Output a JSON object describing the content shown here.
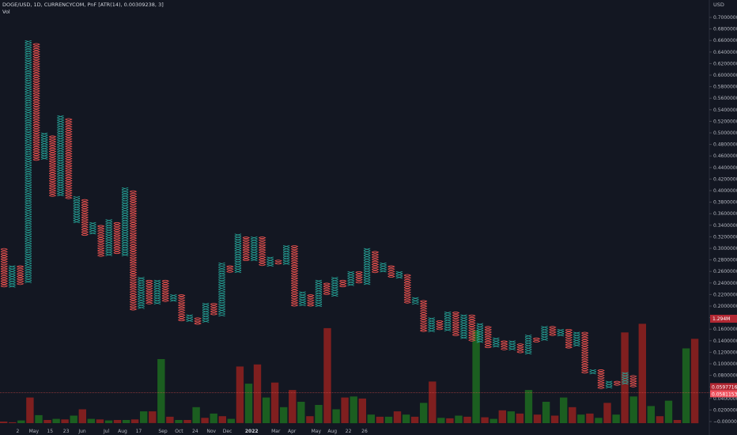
{
  "legend": {
    "symbol_line": "DOGE/USD, 1D, CURRENCYCOM, PnF [ATR(14), 0.00309238, 3]",
    "volume_line": "Vol"
  },
  "chart_data": {
    "type": "point-and-figure",
    "currency": "USD",
    "y_axis": {
      "unit": "USD",
      "ticks": [
        "0.7000000",
        "0.6800000",
        "0.6600000",
        "0.6400000",
        "0.6200000",
        "0.6000000",
        "0.5800000",
        "0.5600000",
        "0.5400000",
        "0.5200000",
        "0.5000000",
        "0.4800000",
        "0.4600000",
        "0.4400000",
        "0.4200000",
        "0.4000000",
        "0.3800000",
        "0.3600000",
        "0.3400000",
        "0.3200000",
        "0.3000000",
        "0.2800000",
        "0.2600000",
        "0.2400000",
        "0.2200000",
        "0.2000000",
        "0.1800000",
        "0.1600000",
        "0.1400000",
        "0.1200000",
        "0.1000000",
        "0.0800000",
        "0.0600000",
        "0.0400000",
        "0.0200000",
        "−0.0000000"
      ],
      "range": [
        0,
        0.7
      ]
    },
    "x_axis": {
      "ticks": [
        {
          "label": "2",
          "col": 0
        },
        {
          "label": "May",
          "col": 2
        },
        {
          "label": "15",
          "col": 4
        },
        {
          "label": "23",
          "col": 6
        },
        {
          "label": "Jun",
          "col": 8
        },
        {
          "label": "Jul",
          "col": 11
        },
        {
          "label": "Aug",
          "col": 13
        },
        {
          "label": "17",
          "col": 15
        },
        {
          "label": "Sep",
          "col": 18
        },
        {
          "label": "Oct",
          "col": 20
        },
        {
          "label": "24",
          "col": 22
        },
        {
          "label": "Nov",
          "col": 24
        },
        {
          "label": "Dec",
          "col": 26
        },
        {
          "label": "2022",
          "col": 29,
          "bold": true
        },
        {
          "label": "Mar",
          "col": 32
        },
        {
          "label": "Apr",
          "col": 34
        },
        {
          "label": "May",
          "col": 37
        },
        {
          "label": "Aug",
          "col": 39
        },
        {
          "label": "22",
          "col": 41
        },
        {
          "label": "26",
          "col": 43
        }
      ]
    },
    "colors": {
      "up": "#26a69a",
      "down": "#ef5350",
      "vol_up": "#1b5e20",
      "vol_down": "#7f1f1f",
      "background": "#131722"
    },
    "box_size": 0.00309238,
    "reversal": 3,
    "columns": [
      {
        "dir": "down",
        "from": 0.3,
        "to": 0.235
      },
      {
        "dir": "up",
        "from": 0.235,
        "to": 0.27
      },
      {
        "dir": "down",
        "from": 0.27,
        "to": 0.24
      },
      {
        "dir": "up",
        "from": 0.24,
        "to": 0.66
      },
      {
        "dir": "down",
        "from": 0.655,
        "to": 0.455
      },
      {
        "dir": "up",
        "from": 0.455,
        "to": 0.5
      },
      {
        "dir": "down",
        "from": 0.495,
        "to": 0.39
      },
      {
        "dir": "up",
        "from": 0.39,
        "to": 0.53
      },
      {
        "dir": "down",
        "from": 0.525,
        "to": 0.385
      },
      {
        "dir": "up",
        "from": 0.345,
        "to": 0.39
      },
      {
        "dir": "down",
        "from": 0.385,
        "to": 0.325
      },
      {
        "dir": "up",
        "from": 0.325,
        "to": 0.345
      },
      {
        "dir": "down",
        "from": 0.34,
        "to": 0.285
      },
      {
        "dir": "up",
        "from": 0.29,
        "to": 0.35
      },
      {
        "dir": "down",
        "from": 0.345,
        "to": 0.29
      },
      {
        "dir": "up",
        "from": 0.29,
        "to": 0.405
      },
      {
        "dir": "down",
        "from": 0.4,
        "to": 0.195
      },
      {
        "dir": "up",
        "from": 0.195,
        "to": 0.25
      },
      {
        "dir": "down",
        "from": 0.245,
        "to": 0.205
      },
      {
        "dir": "up",
        "from": 0.205,
        "to": 0.245
      },
      {
        "dir": "down",
        "from": 0.245,
        "to": 0.21
      },
      {
        "dir": "up",
        "from": 0.21,
        "to": 0.22
      },
      {
        "dir": "down",
        "from": 0.22,
        "to": 0.175
      },
      {
        "dir": "up",
        "from": 0.175,
        "to": 0.185
      },
      {
        "dir": "down",
        "from": 0.18,
        "to": 0.17
      },
      {
        "dir": "up",
        "from": 0.175,
        "to": 0.205
      },
      {
        "dir": "down",
        "from": 0.205,
        "to": 0.185
      },
      {
        "dir": "up",
        "from": 0.185,
        "to": 0.275
      },
      {
        "dir": "down",
        "from": 0.27,
        "to": 0.26
      },
      {
        "dir": "up",
        "from": 0.26,
        "to": 0.325
      },
      {
        "dir": "down",
        "from": 0.32,
        "to": 0.28
      },
      {
        "dir": "up",
        "from": 0.28,
        "to": 0.32
      },
      {
        "dir": "down",
        "from": 0.32,
        "to": 0.27
      },
      {
        "dir": "up",
        "from": 0.27,
        "to": 0.285
      },
      {
        "dir": "down",
        "from": 0.28,
        "to": 0.275
      },
      {
        "dir": "up",
        "from": 0.275,
        "to": 0.305
      },
      {
        "dir": "down",
        "from": 0.305,
        "to": 0.2
      },
      {
        "dir": "up",
        "from": 0.2,
        "to": 0.225
      },
      {
        "dir": "down",
        "from": 0.22,
        "to": 0.2
      },
      {
        "dir": "up",
        "from": 0.2,
        "to": 0.245
      },
      {
        "dir": "down",
        "from": 0.24,
        "to": 0.22
      },
      {
        "dir": "up",
        "from": 0.22,
        "to": 0.25
      },
      {
        "dir": "down",
        "from": 0.245,
        "to": 0.235
      },
      {
        "dir": "up",
        "from": 0.235,
        "to": 0.26
      },
      {
        "dir": "down",
        "from": 0.26,
        "to": 0.24
      },
      {
        "dir": "up",
        "from": 0.24,
        "to": 0.3
      },
      {
        "dir": "down",
        "from": 0.295,
        "to": 0.26
      },
      {
        "dir": "up",
        "from": 0.26,
        "to": 0.275
      },
      {
        "dir": "down",
        "from": 0.27,
        "to": 0.25
      },
      {
        "dir": "up",
        "from": 0.25,
        "to": 0.26
      },
      {
        "dir": "down",
        "from": 0.255,
        "to": 0.205
      },
      {
        "dir": "up",
        "from": 0.205,
        "to": 0.215
      },
      {
        "dir": "down",
        "from": 0.21,
        "to": 0.155
      },
      {
        "dir": "up",
        "from": 0.155,
        "to": 0.18
      },
      {
        "dir": "down",
        "from": 0.175,
        "to": 0.16
      },
      {
        "dir": "up",
        "from": 0.16,
        "to": 0.19
      },
      {
        "dir": "down",
        "from": 0.19,
        "to": 0.15
      },
      {
        "dir": "up",
        "from": 0.145,
        "to": 0.185
      },
      {
        "dir": "down",
        "from": 0.185,
        "to": 0.14
      },
      {
        "dir": "up",
        "from": 0.14,
        "to": 0.17
      },
      {
        "dir": "down",
        "from": 0.165,
        "to": 0.13
      },
      {
        "dir": "up",
        "from": 0.13,
        "to": 0.145
      },
      {
        "dir": "down",
        "from": 0.14,
        "to": 0.125
      },
      {
        "dir": "up",
        "from": 0.125,
        "to": 0.14
      },
      {
        "dir": "down",
        "from": 0.135,
        "to": 0.12
      },
      {
        "dir": "up",
        "from": 0.12,
        "to": 0.15
      },
      {
        "dir": "down",
        "from": 0.145,
        "to": 0.14
      },
      {
        "dir": "up",
        "from": 0.14,
        "to": 0.165
      },
      {
        "dir": "down",
        "from": 0.165,
        "to": 0.15
      },
      {
        "dir": "up",
        "from": 0.15,
        "to": 0.16
      },
      {
        "dir": "down",
        "from": 0.16,
        "to": 0.13
      },
      {
        "dir": "up",
        "from": 0.13,
        "to": 0.155
      },
      {
        "dir": "down",
        "from": 0.155,
        "to": 0.085
      },
      {
        "dir": "up",
        "from": 0.085,
        "to": 0.09
      },
      {
        "dir": "down",
        "from": 0.09,
        "to": 0.06
      },
      {
        "dir": "up",
        "from": 0.06,
        "to": 0.07
      },
      {
        "dir": "down",
        "from": 0.07,
        "to": 0.065
      },
      {
        "dir": "up",
        "from": 0.065,
        "to": 0.085
      },
      {
        "dir": "down",
        "from": 0.08,
        "to": 0.06
      }
    ],
    "volume": {
      "max_label": "1.294M",
      "values": [
        0.015,
        0.008,
        0.025,
        0.24,
        0.075,
        0.03,
        0.04,
        0.035,
        0.07,
        0.13,
        0.04,
        0.035,
        0.025,
        0.03,
        0.03,
        0.035,
        0.11,
        0.11,
        0.6,
        0.06,
        0.03,
        0.03,
        0.15,
        0.05,
        0.09,
        0.065,
        0.04,
        0.53,
        0.37,
        0.55,
        0.24,
        0.38,
        0.15,
        0.31,
        0.2,
        0.065,
        0.17,
        0.89,
        0.13,
        0.24,
        0.25,
        0.23,
        0.08,
        0.06,
        0.06,
        0.11,
        0.08,
        0.06,
        0.19,
        0.39,
        0.05,
        0.045,
        0.07,
        0.06,
        0.87,
        0.055,
        0.04,
        0.12,
        0.11,
        0.09,
        0.31,
        0.08,
        0.2,
        0.07,
        0.24,
        0.15,
        0.08,
        0.09,
        0.05,
        0.19,
        0.08,
        0.85,
        0.25,
        0.93,
        0.16,
        0.065,
        0.21,
        0.03,
        0.7,
        0.79
      ]
    },
    "current_price": {
      "label_top": "0.0597716",
      "label_bottom": "0.0581153",
      "value": 0.0597716
    }
  }
}
